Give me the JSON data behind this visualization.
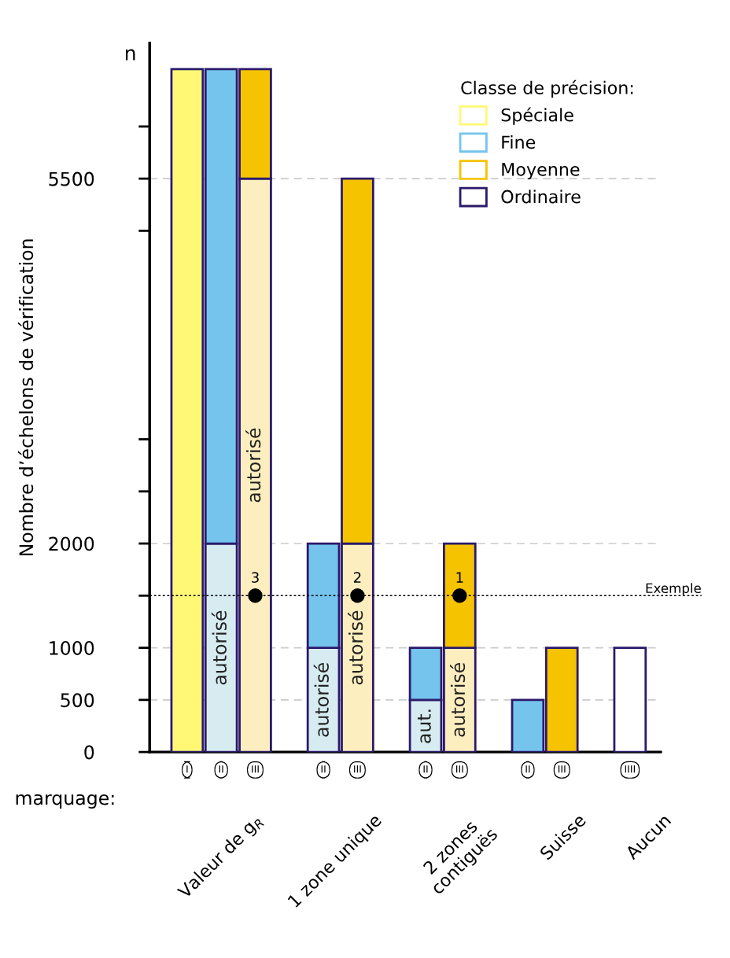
{
  "chart_data": {
    "type": "bar",
    "ylabel": "Nombre d’échelons de vérification",
    "legend_title": "Classe de précision:",
    "legend": "top right",
    "categories": [
      "I",
      "II",
      "III",
      null,
      "II",
      "III",
      null,
      "II",
      "III",
      null,
      "II",
      "III",
      null,
      "IIII"
    ],
    "series": [
      {
        "colors": [
          "#ffffff",
          "#d6ecf1",
          "#fdeebf",
          "#ffffff",
          "#d6ecf1",
          "#fdeebf",
          "#ffffff",
          "#d6ecf1",
          "#fdeebf",
          "#ffffff",
          "#ffffff",
          "#ffffff",
          "#ffffff",
          "#ffffff"
        ],
        "values": [
          null,
          2000,
          5500,
          null,
          1000,
          2000,
          null,
          500,
          1000,
          null,
          null,
          null,
          null,
          null
        ],
        "value_labels": [
          null,
          "autorisé",
          "autorisé",
          null,
          "autorisé",
          "autorisé",
          null,
          "aut.",
          "autorisé",
          null,
          null,
          null,
          null,
          null
        ]
      },
      {
        "name": "Spéciale",
        "color": "#fff875",
        "values": [
          6550,
          null,
          null,
          null,
          null,
          null,
          null,
          null,
          null,
          null,
          null,
          null,
          null,
          null
        ],
        "base": [
          0,
          null,
          null,
          null,
          null,
          null,
          null,
          null,
          null,
          null,
          null,
          null,
          null,
          null
        ]
      },
      {
        "name": "Fine",
        "color": "#74c4ee",
        "values": [
          null,
          4550,
          null,
          null,
          1000,
          null,
          null,
          500,
          null,
          null,
          500,
          null,
          null,
          null
        ],
        "base": [
          null,
          2000,
          null,
          null,
          1000,
          null,
          null,
          500,
          null,
          null,
          0,
          null,
          null,
          null
        ]
      },
      {
        "name": "Moyenne",
        "color": "#f6c300",
        "values": [
          null,
          null,
          1050,
          null,
          null,
          3500,
          null,
          null,
          1000,
          null,
          null,
          1000,
          null,
          null
        ],
        "base": [
          null,
          null,
          5500,
          null,
          null,
          2000,
          null,
          null,
          1000,
          null,
          null,
          0,
          null,
          null
        ]
      },
      {
        "name": "Ordinaire",
        "color": "#ffffff",
        "values": [
          null,
          null,
          null,
          null,
          null,
          null,
          null,
          null,
          null,
          null,
          null,
          null,
          null,
          1000
        ],
        "base": [
          null,
          null,
          null,
          null,
          null,
          null,
          null,
          null,
          null,
          null,
          null,
          null,
          null,
          0
        ]
      },
      {
        "type": "scatter",
        "color": "#000000",
        "values": [
          null,
          null,
          1500,
          null,
          null,
          1500,
          null,
          null,
          1500,
          null,
          null,
          null,
          null,
          null
        ]
      }
    ],
    "ylim": [
      0,
      6800
    ],
    "yticks": [
      0,
      500,
      1000,
      {
        "value": 1500,
        "label": null
      },
      2000,
      {
        "value": 2500,
        "label": null
      },
      {
        "value": 3000,
        "label": null
      },
      {
        "value": 5000,
        "label": null
      },
      5500,
      {
        "value": 6000,
        "label": null
      }
    ],
    "ref_lines": [
      {
        "axis": "y",
        "value": 500,
        "color": "#cccccc",
        "line_style": "dashed"
      },
      {
        "axis": "y",
        "value": 1000,
        "color": "#cccccc",
        "line_style": "dashed"
      },
      {
        "axis": "y",
        "value": 2000,
        "color": "#cccccc",
        "line_style": "dashed"
      },
      {
        "axis": "y",
        "value": 5500,
        "color": "#cccccc",
        "line_style": "dashed"
      },
      {
        "axis": "y",
        "value": 1500,
        "label": "Exemple",
        "color": "#000000",
        "line_style": "dotted"
      }
    ],
    "annotations": [
      "n",
      "marquage:",
      "Valeur de g$_{R}$",
      "1 zone unique",
      "2 zones\ncontiguës",
      "Suisse",
      "Aucun",
      "3",
      "2",
      "1"
    ]
  }
}
